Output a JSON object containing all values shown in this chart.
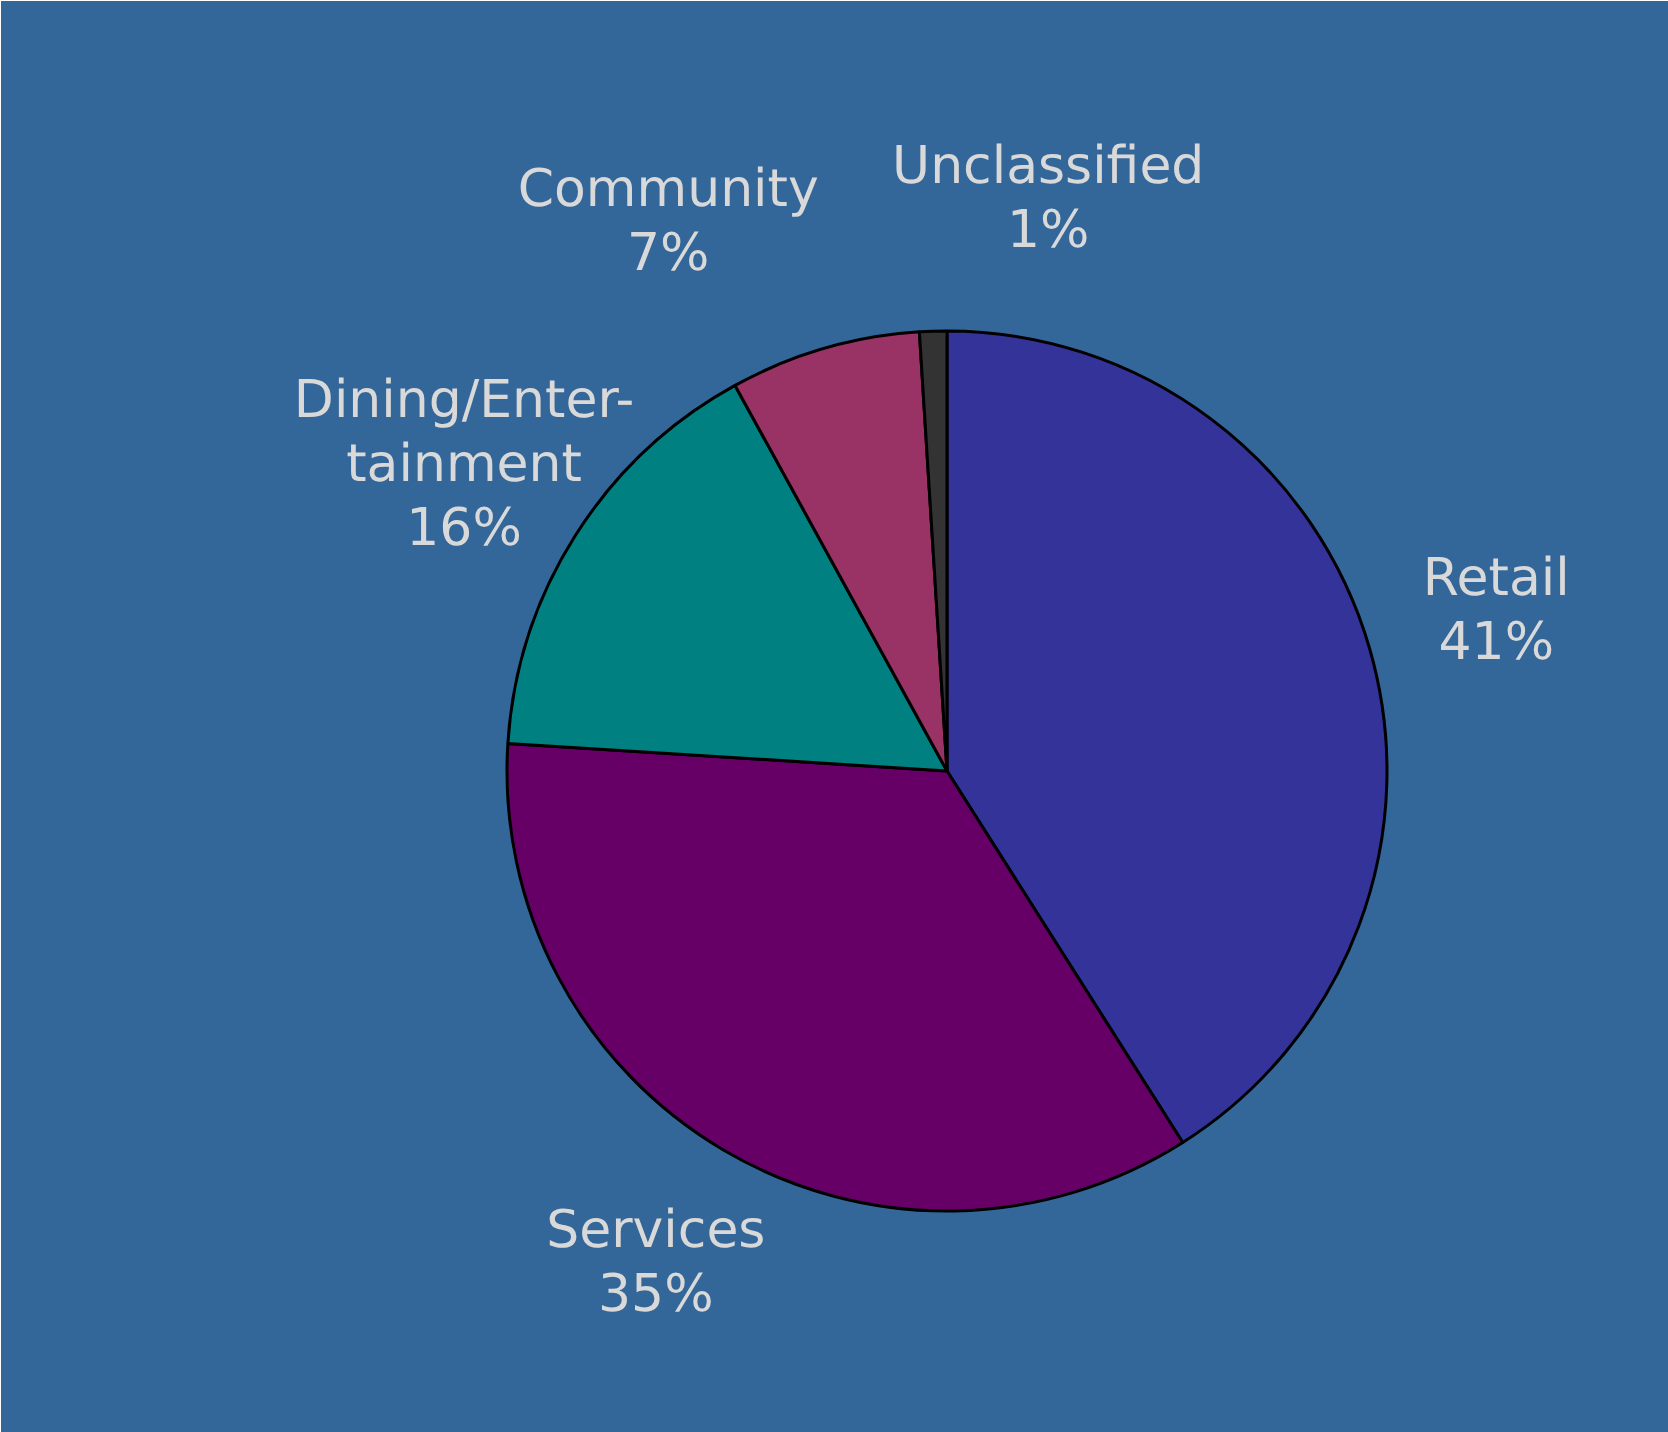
{
  "chart_data": {
    "type": "pie",
    "categories": [
      "Retail",
      "Services",
      "Dining/Enter-\ntainment",
      "Community",
      "Unclassified"
    ],
    "values": [
      41,
      35,
      16,
      7,
      1
    ],
    "colors": [
      "#333399",
      "#660066",
      "#008080",
      "#993366",
      "#333333"
    ],
    "value_labels": [
      "41%",
      "35%",
      "16%",
      "7%",
      "1%"
    ]
  }
}
